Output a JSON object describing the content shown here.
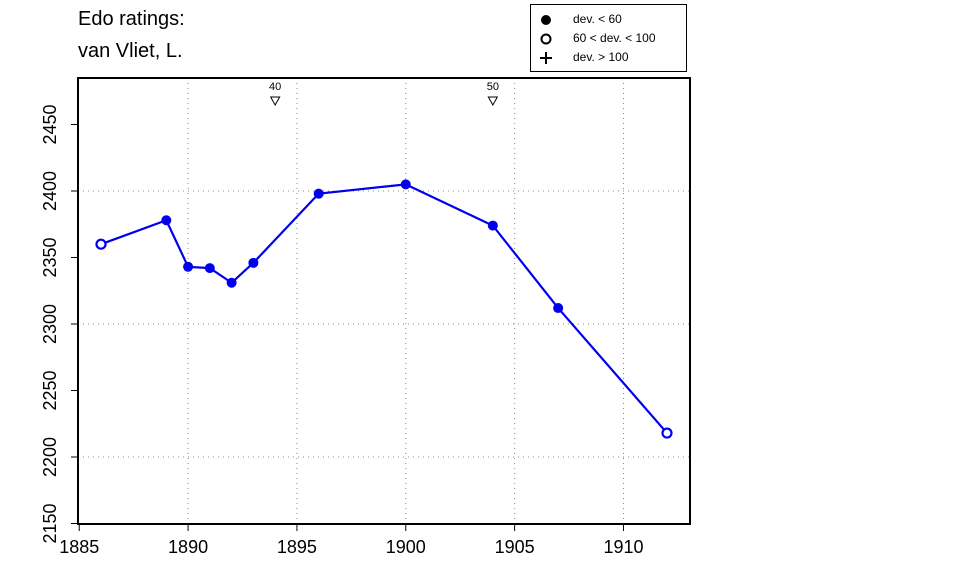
{
  "chart_data": {
    "type": "line",
    "title_line1": "Edo ratings:",
    "title_line2": "van Vliet, L.",
    "xlabel": "",
    "ylabel": "",
    "xlim": [
      1885,
      1913
    ],
    "ylim": [
      2145,
      2485
    ],
    "x_ticks": [
      1885,
      1890,
      1895,
      1900,
      1905,
      1910
    ],
    "y_ticks": [
      2150,
      2200,
      2250,
      2300,
      2350,
      2400,
      2450
    ],
    "x_grid": [
      1890,
      1895,
      1900,
      1905,
      1910
    ],
    "y_grid": [
      2200,
      2300,
      2400
    ],
    "grid": "dotted",
    "series": [
      {
        "color": "#0000ee",
        "points": [
          {
            "x": 1886,
            "y": 2360,
            "marker": "open"
          },
          {
            "x": 1889,
            "y": 2378,
            "marker": "filled"
          },
          {
            "x": 1890,
            "y": 2343,
            "marker": "filled"
          },
          {
            "x": 1891,
            "y": 2342,
            "marker": "filled"
          },
          {
            "x": 1892,
            "y": 2331,
            "marker": "filled"
          },
          {
            "x": 1893,
            "y": 2346,
            "marker": "filled"
          },
          {
            "x": 1896,
            "y": 2398,
            "marker": "filled"
          },
          {
            "x": 1900,
            "y": 2405,
            "marker": "filled"
          },
          {
            "x": 1904,
            "y": 2374,
            "marker": "filled"
          },
          {
            "x": 1907,
            "y": 2312,
            "marker": "filled"
          },
          {
            "x": 1912,
            "y": 2218,
            "marker": "open"
          }
        ]
      }
    ],
    "annotations": [
      {
        "x": 1894,
        "label": "40"
      },
      {
        "x": 1904,
        "label": "50"
      }
    ],
    "legend": {
      "position": "top-right",
      "entries": [
        {
          "symbol": "filled-circle",
          "label": "dev. < 60"
        },
        {
          "symbol": "open-circle",
          "label": "60 < dev. < 100"
        },
        {
          "symbol": "plus",
          "label": "dev. > 100"
        }
      ]
    }
  }
}
